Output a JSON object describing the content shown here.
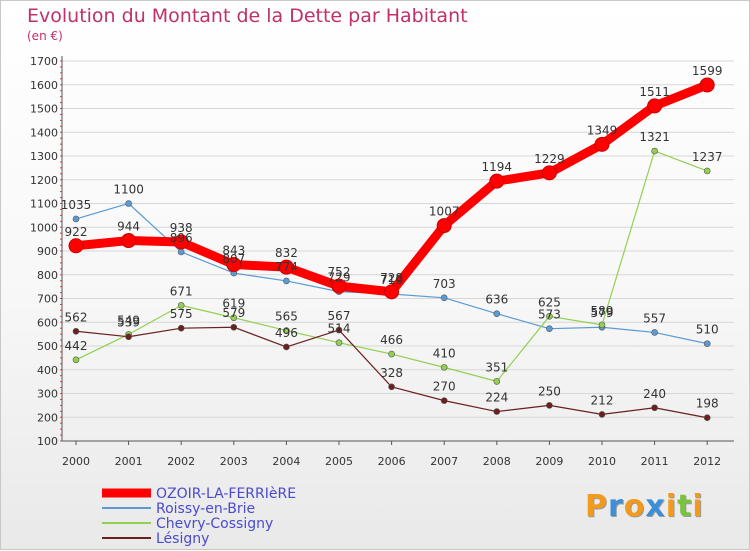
{
  "header": {
    "title": "Evolution du Montant de la Dette par Habitant",
    "unit": "(en €)"
  },
  "logo": {
    "letters": [
      "P",
      "r",
      "o",
      "x",
      "i",
      "t",
      "i"
    ],
    "colors": [
      "#f29a1e",
      "#3a8fd8",
      "#f29a1e",
      "#3a8fd8",
      "#f29a1e",
      "#7cc242",
      "#f29a1e"
    ]
  },
  "chart_data": {
    "type": "line",
    "title": "Evolution du Montant de la Dette par Habitant",
    "subtitle": "(en €)",
    "xlabel": "",
    "ylabel": "",
    "x": [
      "2000",
      "2001",
      "2002",
      "2003",
      "2004",
      "2005",
      "2006",
      "2007",
      "2008",
      "2009",
      "2010",
      "2011",
      "2012"
    ],
    "ylim": [
      100,
      1700
    ],
    "yticks": [
      100,
      200,
      300,
      400,
      500,
      600,
      700,
      800,
      900,
      1000,
      1100,
      1200,
      1300,
      1400,
      1500,
      1600,
      1700
    ],
    "grid": "horizontal",
    "legend_position": "bottom-left",
    "series": [
      {
        "name": "Roissy-en-Brie",
        "color": "#5b9bd5",
        "values": [
          1035,
          1100,
          896,
          807,
          774,
          729,
          719,
          703,
          636,
          573,
          579,
          557,
          510
        ],
        "labels": [
          "1035",
          "1100",
          "896",
          "807",
          "774",
          "729",
          "719",
          "703",
          "636",
          "573",
          "579",
          "557",
          "510"
        ]
      },
      {
        "name": "Chevry-Cossigny",
        "color": "#92d050",
        "values": [
          442,
          549,
          671,
          619,
          565,
          514,
          466,
          410,
          351,
          625,
          589,
          1321,
          1237
        ],
        "labels": [
          "442",
          "549",
          "671",
          "619",
          "565",
          "514",
          "466",
          "410",
          "351",
          "625",
          "589",
          "1321",
          "1237"
        ]
      },
      {
        "name": "Lésigny",
        "color": "#6b1f1f",
        "values": [
          562,
          539,
          575,
          579,
          496,
          567,
          328,
          270,
          224,
          250,
          212,
          240,
          198
        ],
        "labels": [
          "562",
          "539",
          "575",
          "579",
          "496",
          "567",
          "328",
          "270",
          "224",
          "250",
          "212",
          "240",
          "198"
        ]
      },
      {
        "name": "OZOIR-LA-FERRIèRE",
        "color": "#ff0000",
        "values": [
          922,
          944,
          938,
          843,
          832,
          752,
          728,
          1007,
          1194,
          1229,
          1349,
          1511,
          1599
        ],
        "labels": [
          "922",
          "944",
          "938",
          "843",
          "832",
          "752",
          "728",
          "1007",
          "1194",
          "1229",
          "1349",
          "1511",
          "1599"
        ]
      }
    ],
    "legend": [
      "OZOIR-LA-FERRIèRE",
      "Roissy-en-Brie",
      "Chevry-Cossigny",
      "Lésigny"
    ]
  }
}
